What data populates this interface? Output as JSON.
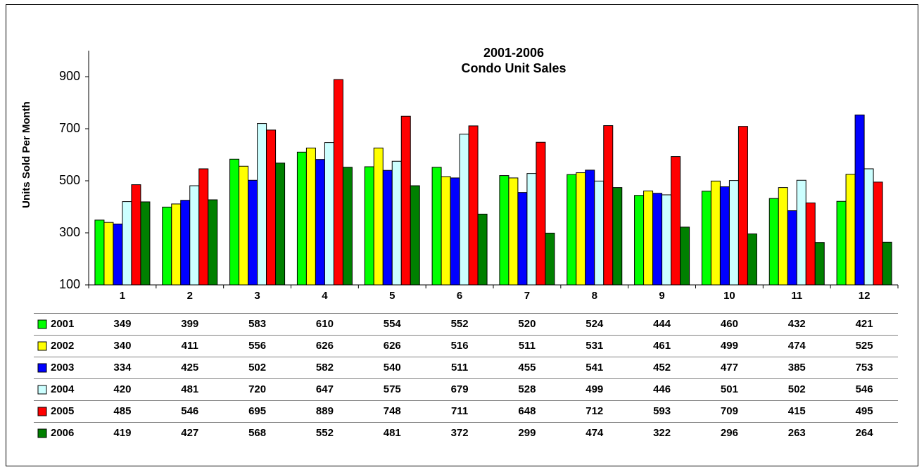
{
  "chart_data": {
    "type": "bar",
    "title": "2001-2006",
    "subtitle": "Condo Unit Sales",
    "y_label": "Units Sold Per Month",
    "categories": [
      1,
      2,
      3,
      4,
      5,
      6,
      7,
      8,
      9,
      10,
      11,
      12
    ],
    "ylim": [
      100,
      1000
    ],
    "yticks": [
      100,
      300,
      500,
      700,
      900
    ],
    "series": [
      {
        "name": "2001",
        "color": "#00ff00",
        "values": [
          349,
          399,
          583,
          610,
          554,
          552,
          520,
          524,
          444,
          460,
          432,
          421
        ]
      },
      {
        "name": "2002",
        "color": "#ffff00",
        "values": [
          340,
          411,
          556,
          626,
          626,
          516,
          511,
          531,
          461,
          499,
          474,
          525
        ]
      },
      {
        "name": "2003",
        "color": "#0000ff",
        "values": [
          334,
          425,
          502,
          582,
          540,
          511,
          455,
          541,
          452,
          477,
          385,
          753
        ]
      },
      {
        "name": "2004",
        "color": "#ccffff",
        "values": [
          420,
          481,
          720,
          647,
          575,
          679,
          528,
          499,
          446,
          501,
          502,
          546
        ]
      },
      {
        "name": "2005",
        "color": "#ff0000",
        "values": [
          485,
          546,
          695,
          889,
          748,
          711,
          648,
          712,
          593,
          709,
          415,
          495
        ]
      },
      {
        "name": "2006",
        "color": "#008000",
        "values": [
          419,
          427,
          568,
          552,
          481,
          372,
          299,
          474,
          322,
          296,
          263,
          264
        ]
      }
    ]
  }
}
